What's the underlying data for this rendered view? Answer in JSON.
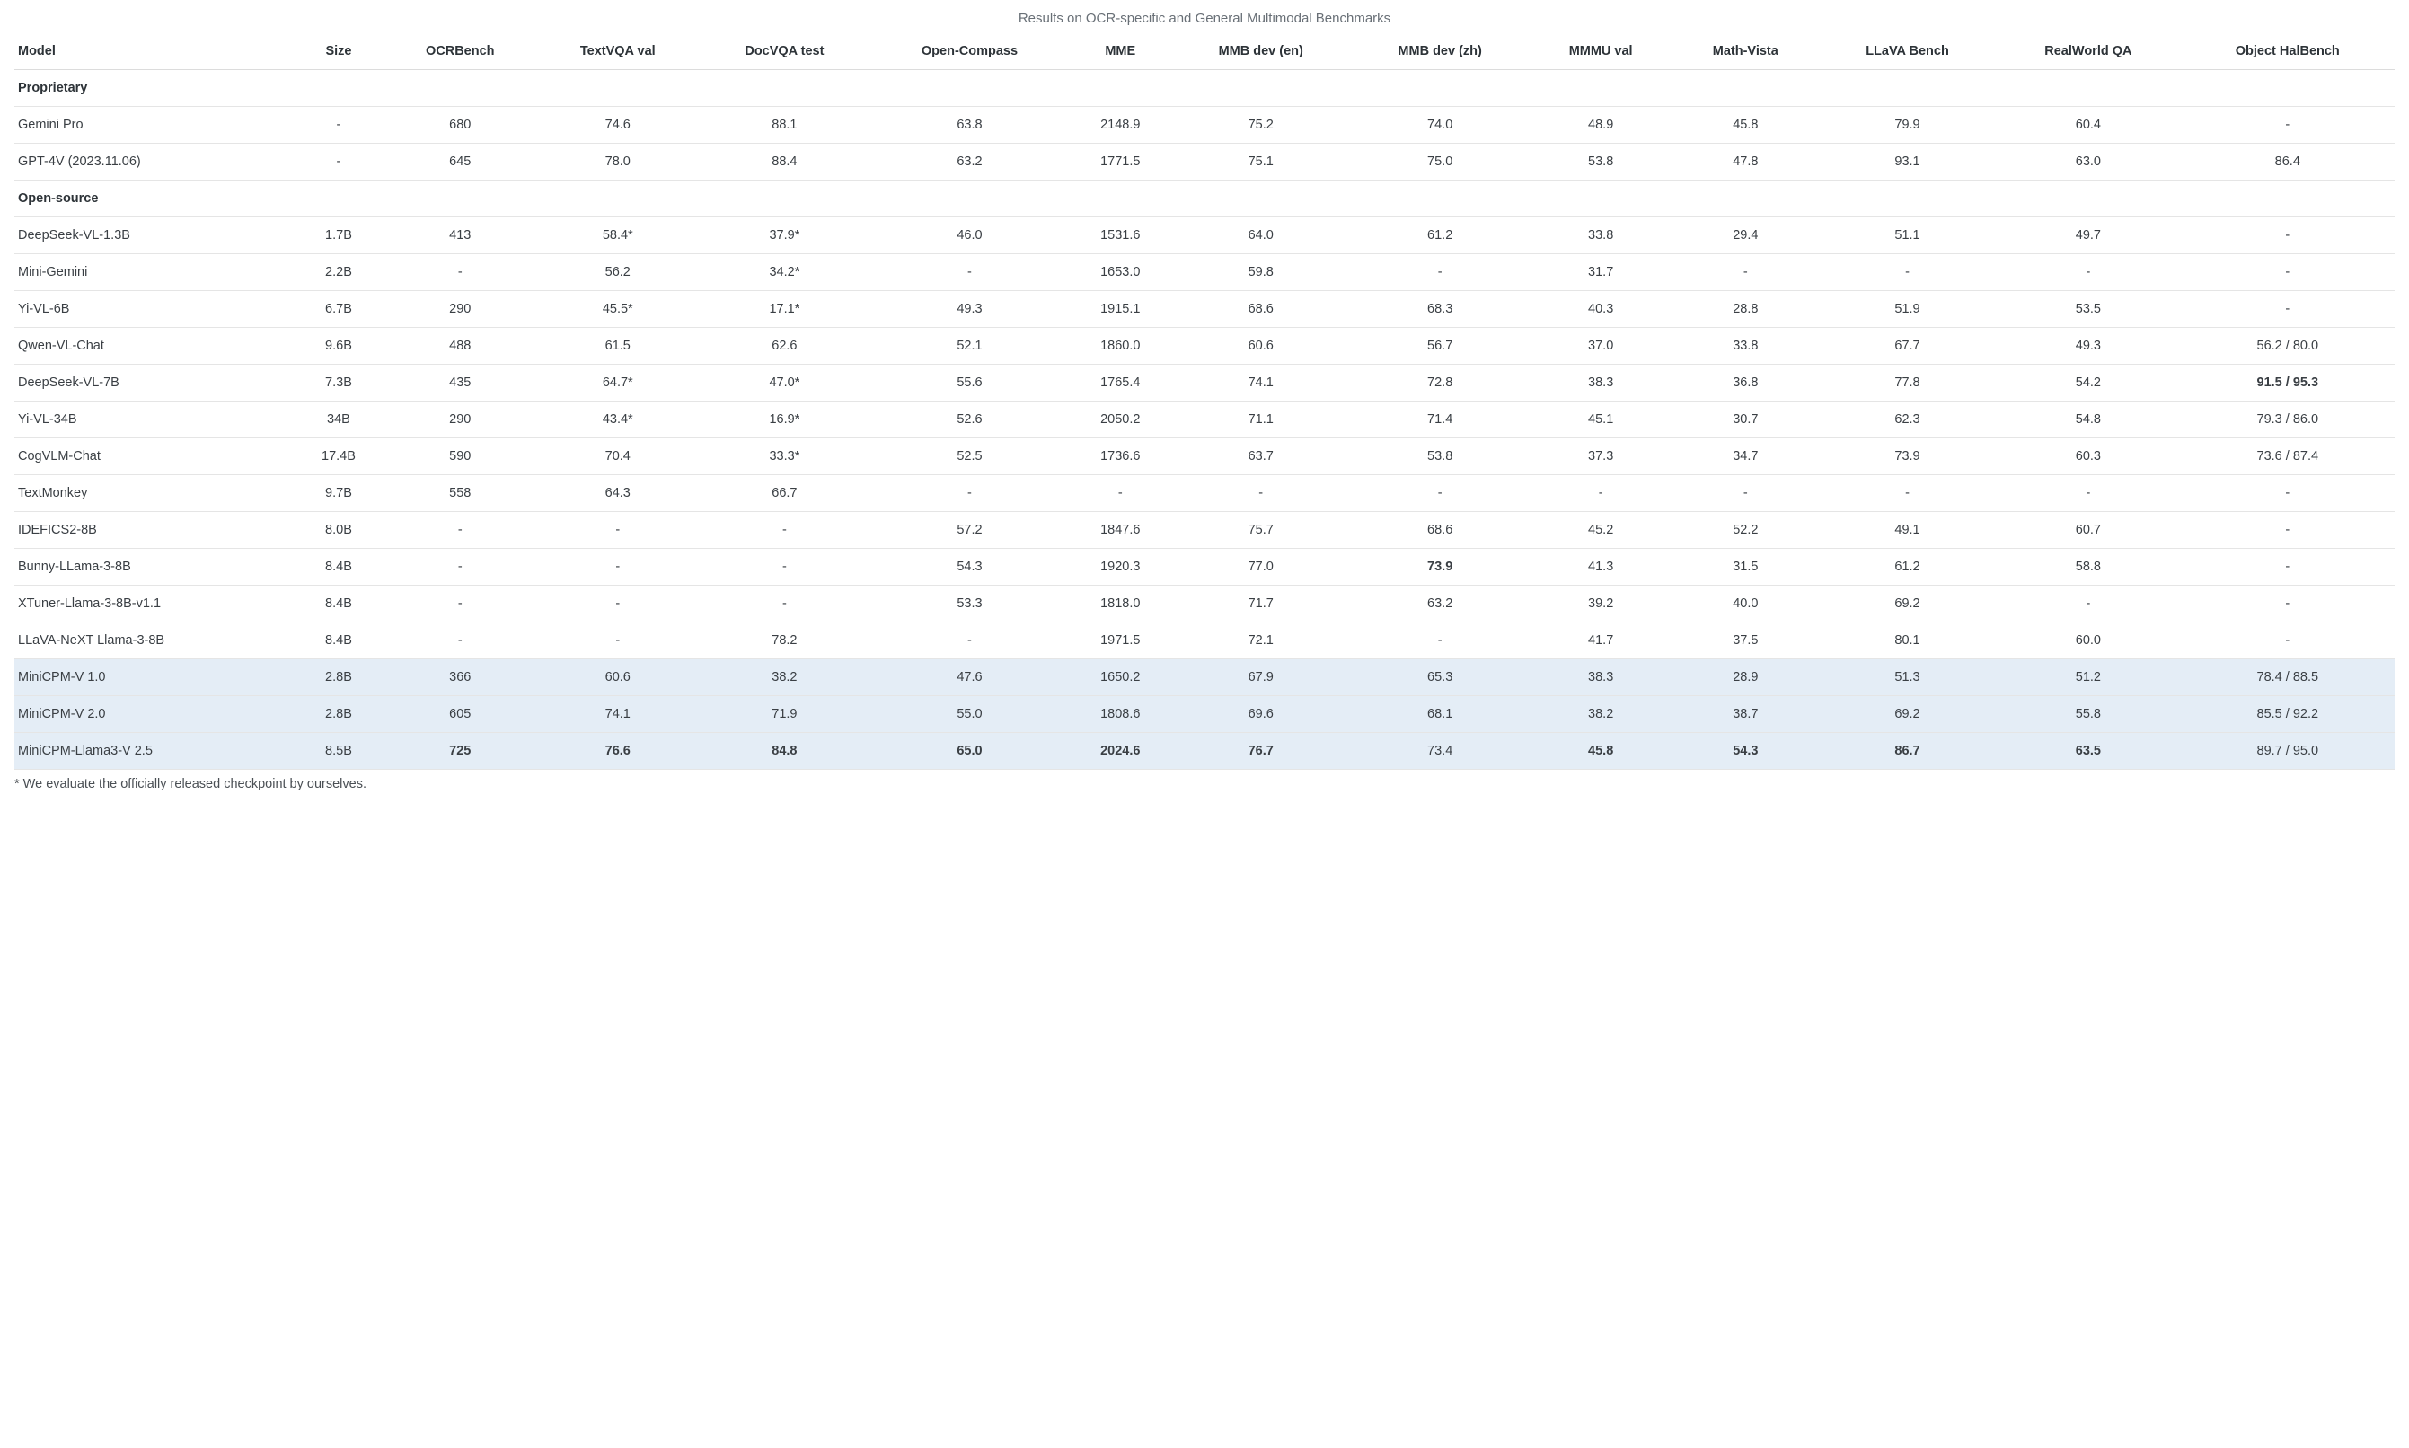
{
  "caption": "Results on OCR-specific and General Multimodal Benchmarks",
  "footnote": "* We evaluate the officially released checkpoint by ourselves.",
  "columns": [
    "Model",
    "Size",
    "OCRBench",
    "TextVQA val",
    "DocVQA test",
    "Open-Compass",
    "MME",
    "MMB dev (en)",
    "MMB dev (zh)",
    "MMMU val",
    "Math-Vista",
    "LLaVA Bench",
    "RealWorld QA",
    "Object HalBench"
  ],
  "colors": {
    "background": "#ffffff",
    "text": "#3a3f44",
    "header_text": "#2d3338",
    "caption_text": "#686f76",
    "border": "#e5e5e5",
    "highlight_row": "#e4edf6"
  },
  "typography": {
    "base_fontsize_pt": 11,
    "header_fontweight": 700,
    "font_family": "system-ui"
  },
  "rows": [
    {
      "type": "section",
      "label": "Proprietary"
    },
    {
      "type": "data",
      "cells": [
        "Gemini Pro",
        "-",
        "680",
        "74.6",
        "88.1",
        "63.8",
        "2148.9",
        "75.2",
        "74.0",
        "48.9",
        "45.8",
        "79.9",
        "60.4",
        "-"
      ],
      "bold": [],
      "highlight": false
    },
    {
      "type": "data",
      "cells": [
        "GPT-4V (2023.11.06)",
        "-",
        "645",
        "78.0",
        "88.4",
        "63.2",
        "1771.5",
        "75.1",
        "75.0",
        "53.8",
        "47.8",
        "93.1",
        "63.0",
        "86.4"
      ],
      "bold": [],
      "highlight": false
    },
    {
      "type": "section",
      "label": "Open-source"
    },
    {
      "type": "data",
      "cells": [
        "DeepSeek-VL-1.3B",
        "1.7B",
        "413",
        "58.4*",
        "37.9*",
        "46.0",
        "1531.6",
        "64.0",
        "61.2",
        "33.8",
        "29.4",
        "51.1",
        "49.7",
        "-"
      ],
      "bold": [],
      "highlight": false
    },
    {
      "type": "data",
      "cells": [
        "Mini-Gemini",
        "2.2B",
        "-",
        "56.2",
        "34.2*",
        "-",
        "1653.0",
        "59.8",
        "-",
        "31.7",
        "-",
        "-",
        "-",
        "-"
      ],
      "bold": [],
      "highlight": false
    },
    {
      "type": "data",
      "cells": [
        "Yi-VL-6B",
        "6.7B",
        "290",
        "45.5*",
        "17.1*",
        "49.3",
        "1915.1",
        "68.6",
        "68.3",
        "40.3",
        "28.8",
        "51.9",
        "53.5",
        "-"
      ],
      "bold": [],
      "highlight": false
    },
    {
      "type": "data",
      "cells": [
        "Qwen-VL-Chat",
        "9.6B",
        "488",
        "61.5",
        "62.6",
        "52.1",
        "1860.0",
        "60.6",
        "56.7",
        "37.0",
        "33.8",
        "67.7",
        "49.3",
        "56.2 / 80.0"
      ],
      "bold": [],
      "highlight": false
    },
    {
      "type": "data",
      "cells": [
        "DeepSeek-VL-7B",
        "7.3B",
        "435",
        "64.7*",
        "47.0*",
        "55.6",
        "1765.4",
        "74.1",
        "72.8",
        "38.3",
        "36.8",
        "77.8",
        "54.2",
        "91.5 / 95.3"
      ],
      "bold": [
        13
      ],
      "highlight": false
    },
    {
      "type": "data",
      "cells": [
        "Yi-VL-34B",
        "34B",
        "290",
        "43.4*",
        "16.9*",
        "52.6",
        "2050.2",
        "71.1",
        "71.4",
        "45.1",
        "30.7",
        "62.3",
        "54.8",
        "79.3 / 86.0"
      ],
      "bold": [],
      "highlight": false
    },
    {
      "type": "data",
      "cells": [
        "CogVLM-Chat",
        "17.4B",
        "590",
        "70.4",
        "33.3*",
        "52.5",
        "1736.6",
        "63.7",
        "53.8",
        "37.3",
        "34.7",
        "73.9",
        "60.3",
        "73.6 / 87.4"
      ],
      "bold": [],
      "highlight": false
    },
    {
      "type": "data",
      "cells": [
        "TextMonkey",
        "9.7B",
        "558",
        "64.3",
        "66.7",
        "-",
        "-",
        "-",
        "-",
        "-",
        "-",
        "-",
        "-",
        "-"
      ],
      "bold": [],
      "highlight": false
    },
    {
      "type": "data",
      "cells": [
        "IDEFICS2-8B",
        "8.0B",
        "-",
        "-",
        "-",
        "57.2",
        "1847.6",
        "75.7",
        "68.6",
        "45.2",
        "52.2",
        "49.1",
        "60.7",
        "-"
      ],
      "bold": [],
      "highlight": false
    },
    {
      "type": "data",
      "cells": [
        "Bunny-LLama-3-8B",
        "8.4B",
        "-",
        "-",
        "-",
        "54.3",
        "1920.3",
        "77.0",
        "73.9",
        "41.3",
        "31.5",
        "61.2",
        "58.8",
        "-"
      ],
      "bold": [
        8
      ],
      "highlight": false
    },
    {
      "type": "data",
      "cells": [
        "XTuner-Llama-3-8B-v1.1",
        "8.4B",
        "-",
        "-",
        "-",
        "53.3",
        "1818.0",
        "71.7",
        "63.2",
        "39.2",
        "40.0",
        "69.2",
        "-",
        "-"
      ],
      "bold": [],
      "highlight": false
    },
    {
      "type": "data",
      "cells": [
        "LLaVA-NeXT Llama-3-8B",
        "8.4B",
        "-",
        "-",
        "78.2",
        "-",
        "1971.5",
        "72.1",
        "-",
        "41.7",
        "37.5",
        "80.1",
        "60.0",
        "-"
      ],
      "bold": [],
      "highlight": false
    },
    {
      "type": "data",
      "cells": [
        "MiniCPM-V 1.0",
        "2.8B",
        "366",
        "60.6",
        "38.2",
        "47.6",
        "1650.2",
        "67.9",
        "65.3",
        "38.3",
        "28.9",
        "51.3",
        "51.2",
        "78.4 / 88.5"
      ],
      "bold": [],
      "highlight": true
    },
    {
      "type": "data",
      "cells": [
        "MiniCPM-V 2.0",
        "2.8B",
        "605",
        "74.1",
        "71.9",
        "55.0",
        "1808.6",
        "69.6",
        "68.1",
        "38.2",
        "38.7",
        "69.2",
        "55.8",
        "85.5 / 92.2"
      ],
      "bold": [],
      "highlight": true
    },
    {
      "type": "data",
      "cells": [
        "MiniCPM-Llama3-V 2.5",
        "8.5B",
        "725",
        "76.6",
        "84.8",
        "65.0",
        "2024.6",
        "76.7",
        "73.4",
        "45.8",
        "54.3",
        "86.7",
        "63.5",
        "89.7 / 95.0"
      ],
      "bold": [
        2,
        3,
        4,
        5,
        6,
        7,
        9,
        10,
        11,
        12
      ],
      "highlight": true
    }
  ]
}
